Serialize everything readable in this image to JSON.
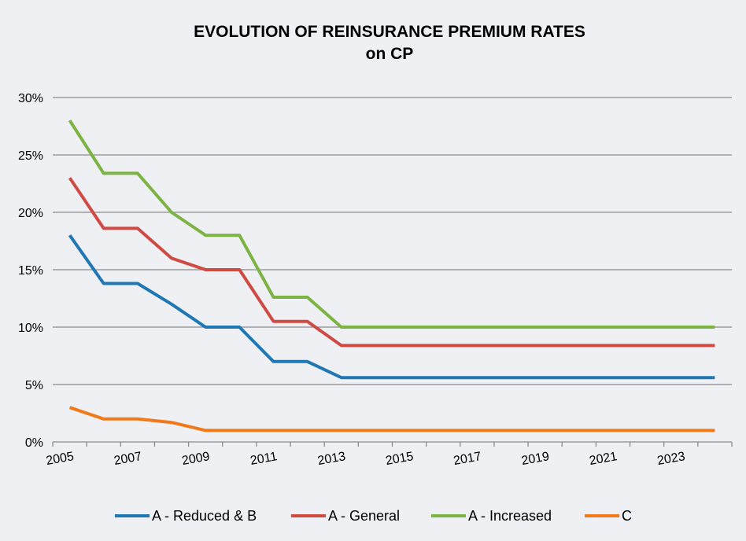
{
  "chart_data": {
    "type": "line",
    "title": "EVOLUTION OF REINSURANCE PREMIUM RATES",
    "subtitle": "on CP",
    "xlabel": "",
    "ylabel": "",
    "x": [
      2005.5,
      2006.5,
      2007.5,
      2008.5,
      2009.5,
      2010.5,
      2011.5,
      2012.5,
      2013.5,
      2014.5,
      2015.5,
      2016.5,
      2017.5,
      2018.5,
      2019.5,
      2020.5,
      2021.5,
      2022.5,
      2023.5,
      2024.5
    ],
    "xlim": [
      2005,
      2025
    ],
    "x_ticks": [
      2005,
      2007,
      2009,
      2011,
      2013,
      2015,
      2017,
      2019,
      2021,
      2023
    ],
    "x_tick_labels": [
      "2005",
      "2007",
      "2009",
      "2011",
      "2013",
      "2015",
      "2017",
      "2019",
      "2021",
      "2023"
    ],
    "ylim": [
      0,
      30
    ],
    "y_ticks": [
      0,
      5,
      10,
      15,
      20,
      25,
      30
    ],
    "y_tick_labels": [
      "0%",
      "5%",
      "10%",
      "15%",
      "20%",
      "25%",
      "30%"
    ],
    "grid": true,
    "legend_position": "bottom",
    "series": [
      {
        "name": "A - Reduced & B",
        "color": "#1f77b4",
        "values": [
          18,
          13.8,
          13.8,
          12,
          10,
          10,
          7,
          7,
          5.6,
          5.6,
          5.6,
          5.6,
          5.6,
          5.6,
          5.6,
          5.6,
          5.6,
          5.6,
          5.6,
          5.6
        ]
      },
      {
        "name": "A - General",
        "color": "#d04a44",
        "values": [
          23,
          18.6,
          18.6,
          16,
          15,
          15,
          10.5,
          10.5,
          8.4,
          8.4,
          8.4,
          8.4,
          8.4,
          8.4,
          8.4,
          8.4,
          8.4,
          8.4,
          8.4,
          8.4
        ]
      },
      {
        "name": "A - Increased",
        "color": "#7cb342",
        "values": [
          28,
          23.4,
          23.4,
          20,
          18,
          18,
          12.6,
          12.6,
          10,
          10,
          10,
          10,
          10,
          10,
          10,
          10,
          10,
          10,
          10,
          10
        ]
      },
      {
        "name": "C",
        "color": "#f07a1a",
        "values": [
          3,
          2,
          2,
          1.7,
          1,
          1,
          1,
          1,
          1,
          1,
          1,
          1,
          1,
          1,
          1,
          1,
          1,
          1,
          1,
          1
        ]
      }
    ]
  }
}
